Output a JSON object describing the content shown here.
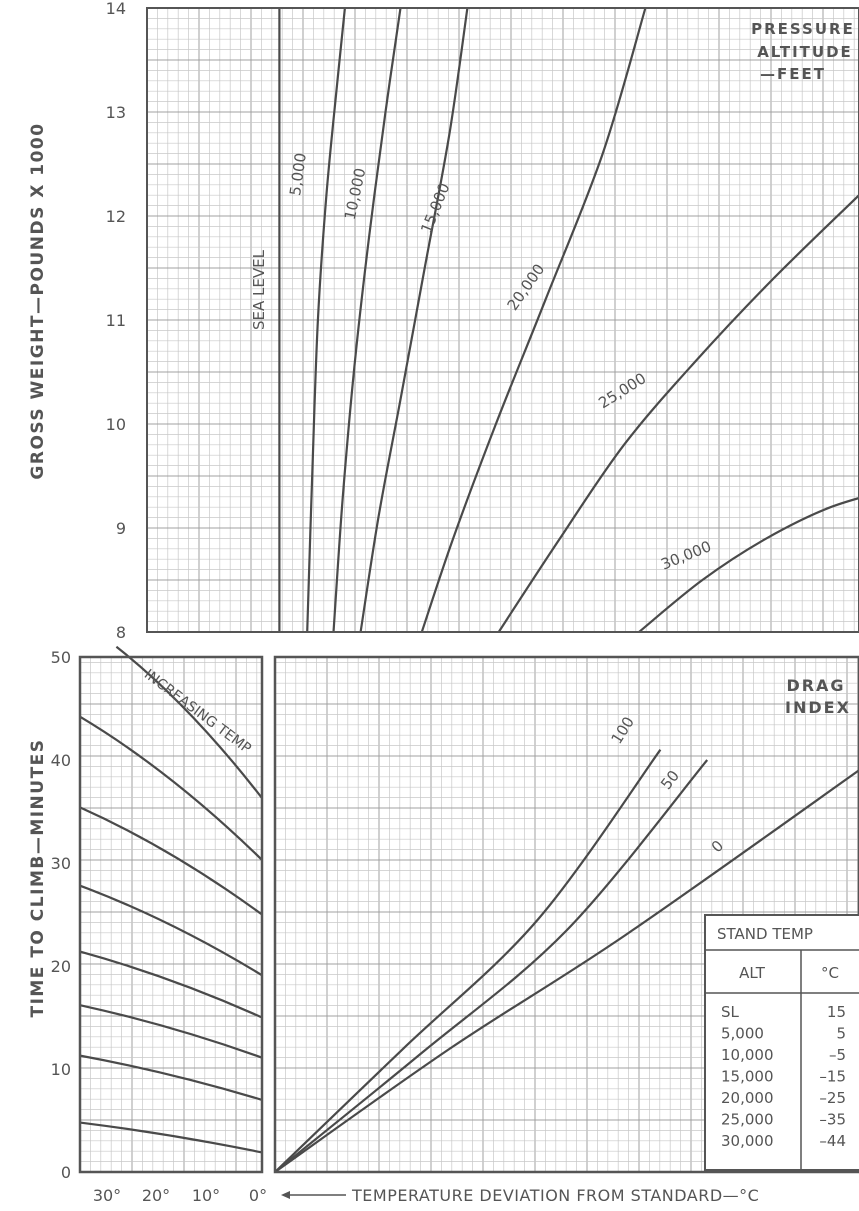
{
  "chart_data": [
    {
      "id": "weight-chart",
      "type": "line",
      "ylabel": "GROSS WEIGHT—POUNDS X 1000",
      "ylim": [
        8,
        14
      ],
      "y_ticks": [
        "8",
        "9",
        "10",
        "11",
        "12",
        "13",
        "14"
      ],
      "legend_title": [
        "PRESSURE",
        "ALTITUDE",
        "—FEET"
      ],
      "grid": true,
      "series": [
        {
          "name": "SEA LEVEL",
          "x": [
            0.186,
            0.186
          ],
          "y": [
            8,
            14
          ]
        },
        {
          "name": "5,000",
          "x": [
            0.225,
            0.232,
            0.24,
            0.252,
            0.266,
            0.278
          ],
          "y": [
            8,
            9.5,
            11,
            12.2,
            13.2,
            14
          ]
        },
        {
          "name": "10,000",
          "x": [
            0.262,
            0.275,
            0.292,
            0.312,
            0.335,
            0.356
          ],
          "y": [
            8,
            9.3,
            10.6,
            11.8,
            13,
            14
          ]
        },
        {
          "name": "15,000",
          "x": [
            0.3,
            0.325,
            0.355,
            0.39,
            0.425,
            0.45
          ],
          "y": [
            8,
            9.1,
            10.2,
            11.5,
            12.8,
            14
          ]
        },
        {
          "name": "20,000",
          "x": [
            0.386,
            0.43,
            0.49,
            0.56,
            0.64,
            0.7
          ],
          "y": [
            8,
            8.9,
            10,
            11.2,
            12.6,
            14
          ]
        },
        {
          "name": "25,000",
          "x": [
            0.494,
            0.58,
            0.67,
            0.77,
            0.88,
            1.0
          ],
          "y": [
            8,
            8.9,
            9.8,
            10.6,
            11.4,
            12.2
          ]
        },
        {
          "name": "30,000",
          "x": [
            0.691,
            0.78,
            0.87,
            0.96,
            1.06,
            1.16
          ],
          "y": [
            8,
            8.5,
            8.9,
            9.2,
            9.4,
            9.6
          ]
        }
      ],
      "pressure_altitude_labels": [
        "SEA LEVEL",
        "5,000",
        "10,000",
        "15,000",
        "20,000",
        "25,000",
        "30,000"
      ]
    },
    {
      "id": "temperature-chart",
      "type": "line",
      "ylabel": "TIME TO CLIMB—MINUTES",
      "xlabel": "TEMPERATURE DEVIATION FROM STANDARD—°C",
      "xlim": [
        35,
        0
      ],
      "ylim": [
        0,
        50
      ],
      "x_ticks": [
        "30°",
        "20°",
        "10°",
        "0°"
      ],
      "y_ticks": [
        "0",
        "10",
        "20",
        "30",
        "40",
        "50"
      ],
      "annotation": "INCREASING TEMP",
      "series": [
        {
          "x": [
            35,
            0
          ],
          "y": [
            4.8,
            1.9
          ]
        },
        {
          "x": [
            35,
            0
          ],
          "y": [
            11.3,
            7.0
          ]
        },
        {
          "x": [
            35,
            0
          ],
          "y": [
            16.2,
            11.1
          ]
        },
        {
          "x": [
            35,
            0
          ],
          "y": [
            21.4,
            15.0
          ]
        },
        {
          "x": [
            35,
            0
          ],
          "y": [
            27.8,
            19.1
          ]
        },
        {
          "x": [
            35,
            0
          ],
          "y": [
            35.4,
            25.0
          ]
        },
        {
          "x": [
            35,
            0
          ],
          "y": [
            44.2,
            30.3
          ]
        },
        {
          "x": [
            28,
            0
          ],
          "y": [
            51.0,
            36.3
          ]
        }
      ]
    },
    {
      "id": "drag-chart",
      "type": "line",
      "ylim": [
        0,
        50
      ],
      "legend_title": [
        "DRAG",
        "INDEX"
      ],
      "series": [
        {
          "name": "100",
          "x": [
            0,
            0.22,
            0.45,
            0.66
          ],
          "y": [
            0,
            12.0,
            24.5,
            41.0
          ]
        },
        {
          "name": "50",
          "x": [
            0,
            0.25,
            0.5,
            0.74
          ],
          "y": [
            0,
            11.5,
            23.5,
            40.0
          ]
        },
        {
          "name": "0",
          "x": [
            0,
            0.3,
            0.6,
            1.0
          ],
          "y": [
            0,
            12.0,
            23.0,
            39.0
          ]
        }
      ]
    }
  ],
  "stand_temp_table": {
    "title": "STAND TEMP",
    "headers": [
      "ALT",
      "°C"
    ],
    "rows": [
      [
        "SL",
        "15"
      ],
      [
        "5,000",
        "5"
      ],
      [
        "10,000",
        "–5"
      ],
      [
        "15,000",
        "–15"
      ],
      [
        "20,000",
        "–25"
      ],
      [
        "25,000",
        "–35"
      ],
      [
        "30,000",
        "–44"
      ]
    ]
  },
  "colors": {
    "curve": "#4a4a4a",
    "grid_minor": "#c8c8c8",
    "grid_major": "#a0a0a0",
    "frame": "#555555",
    "text": "#555555"
  }
}
